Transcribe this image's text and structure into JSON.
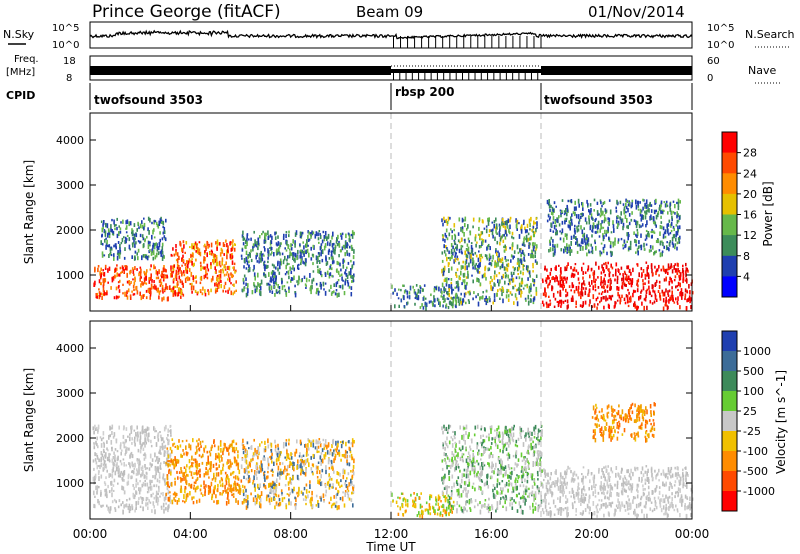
{
  "header": {
    "station": "Prince George (fitACF)",
    "beam": "Beam 09",
    "date": "01/Nov/2014"
  },
  "panels": {
    "noise": {
      "left_label": "N.Sky",
      "right_label": "N.Search",
      "left_ticks": [
        "10^5",
        "10^0"
      ],
      "right_ticks": [
        "10^5",
        "10^0"
      ]
    },
    "freq": {
      "left_label_1": "Freq.",
      "left_label_2": "[MHz]",
      "left_ticks": [
        "18",
        "8"
      ],
      "right_label": "Nave",
      "right_ticks": [
        "60",
        "0"
      ]
    },
    "cpid": {
      "label": "CPID",
      "segments": [
        {
          "name": "twofsound 3503",
          "start": 0,
          "end": 12
        },
        {
          "name": "rbsp 200",
          "start": 12,
          "end": 18
        },
        {
          "name": "twofsound 3503",
          "start": 18,
          "end": 24
        }
      ]
    }
  },
  "colorbars": {
    "power": {
      "title": "Power [dB]",
      "labels": [
        "28",
        "24",
        "20",
        "16",
        "12",
        "8",
        "4"
      ],
      "colors": [
        "#ff0000",
        "#ff4a00",
        "#ff8c00",
        "#e6c000",
        "#66b84a",
        "#3c8c5a",
        "#1f3fb0",
        "#0000ff"
      ]
    },
    "velocity": {
      "title": "Velocity [m s^-1]",
      "labels": [
        "1000",
        "500",
        "100",
        "25",
        "-25",
        "-100",
        "-500",
        "-1000"
      ],
      "colors": [
        "#1f3fb0",
        "#3c6c98",
        "#3d8a5a",
        "#66cc33",
        "#c8c8c8",
        "#f0c000",
        "#ff8c00",
        "#ff4a00",
        "#ff0000"
      ]
    }
  },
  "chart_data": [
    {
      "type": "heatmap",
      "name": "power",
      "ylabel": "Slant Range [km]",
      "ylim": [
        200,
        4600
      ],
      "yticks": [
        1000,
        2000,
        3000,
        4000
      ],
      "xlim": [
        0,
        24
      ],
      "x_unit": "hours UT",
      "regions": [
        {
          "x": [
            0.1,
            3.7
          ],
          "y": [
            500,
            1250
          ],
          "dominant": "red-orange"
        },
        {
          "x": [
            0.4,
            3.0
          ],
          "y": [
            1400,
            2300
          ],
          "dominant": "green-blue"
        },
        {
          "x": [
            3.2,
            5.8
          ],
          "y": [
            600,
            1800
          ],
          "dominant": "red-yellow"
        },
        {
          "x": [
            6.0,
            10.5
          ],
          "y": [
            600,
            2000
          ],
          "dominant": "green-blue"
        },
        {
          "x": [
            12.0,
            14.8
          ],
          "y": [
            300,
            800
          ],
          "dominant": "blue-green"
        },
        {
          "x": [
            14.0,
            17.8
          ],
          "y": [
            400,
            2300
          ],
          "dominant": "green-yellow"
        },
        {
          "x": [
            18.0,
            24.0
          ],
          "y": [
            300,
            1300
          ],
          "dominant": "red"
        },
        {
          "x": [
            18.2,
            23.5
          ],
          "y": [
            1500,
            2700
          ],
          "dominant": "green-blue"
        }
      ]
    },
    {
      "type": "heatmap",
      "name": "velocity",
      "ylabel": "Slant Range [km]",
      "ylim": [
        200,
        4600
      ],
      "yticks": [
        1000,
        2000,
        3000,
        4000
      ],
      "xlim": [
        0,
        24
      ],
      "x_unit": "hours UT",
      "xlabel": "Time UT",
      "xticks": [
        "00:00",
        "04:00",
        "08:00",
        "12:00",
        "16:00",
        "20:00",
        "00:00"
      ],
      "regions": [
        {
          "x": [
            0.1,
            3.2
          ],
          "y": [
            400,
            2300
          ],
          "dominant": "grey"
        },
        {
          "x": [
            3.0,
            6.0
          ],
          "y": [
            600,
            2000
          ],
          "dominant": "orange"
        },
        {
          "x": [
            6.0,
            10.5
          ],
          "y": [
            500,
            2000
          ],
          "dominant": "grey-orange"
        },
        {
          "x": [
            12.0,
            14.5
          ],
          "y": [
            300,
            800
          ],
          "dominant": "yellow-orange"
        },
        {
          "x": [
            14.0,
            18.0
          ],
          "y": [
            400,
            2300
          ],
          "dominant": "grey-green"
        },
        {
          "x": [
            18.0,
            24.0
          ],
          "y": [
            300,
            1400
          ],
          "dominant": "grey"
        },
        {
          "x": [
            20.0,
            22.5
          ],
          "y": [
            2000,
            2800
          ],
          "dominant": "orange"
        }
      ]
    }
  ]
}
